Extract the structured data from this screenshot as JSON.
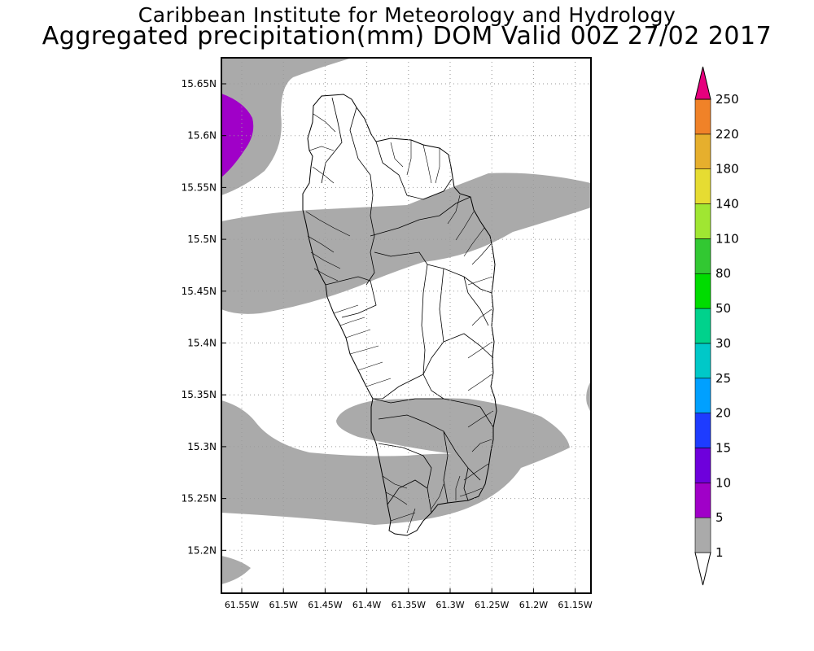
{
  "header": {
    "title_line1": "Caribbean Institute for Meteorology and Hydrology",
    "title_line2": "Aggregated precipitation(mm) DOM Valid 00Z 27/02 2017"
  },
  "map": {
    "y_ticks": [
      "15.65N",
      "15.6N",
      "15.55N",
      "15.5N",
      "15.45N",
      "15.4N",
      "15.35N",
      "15.3N",
      "15.25N",
      "15.2N"
    ],
    "x_ticks": [
      "61.55W",
      "61.5W",
      "61.45W",
      "61.4W",
      "61.35W",
      "61.3W",
      "61.25W",
      "61.2W",
      "61.15W"
    ],
    "shade_colors": {
      "1-5": "#aaaaaa",
      "5-10": "#a000c8"
    }
  },
  "legend": {
    "labels": [
      "1",
      "5",
      "10",
      "15",
      "20",
      "25",
      "30",
      "50",
      "80",
      "110",
      "140",
      "180",
      "220",
      "250"
    ],
    "colors": [
      "#aaaaaa",
      "#a000c8",
      "#6e00dc",
      "#1e3cff",
      "#00a0ff",
      "#00c8c8",
      "#00d28c",
      "#00dc00",
      "#32c832",
      "#a0e632",
      "#e6dc32",
      "#e6af2d",
      "#f08228",
      "#fa3c3c",
      "#e6007d"
    ]
  }
}
